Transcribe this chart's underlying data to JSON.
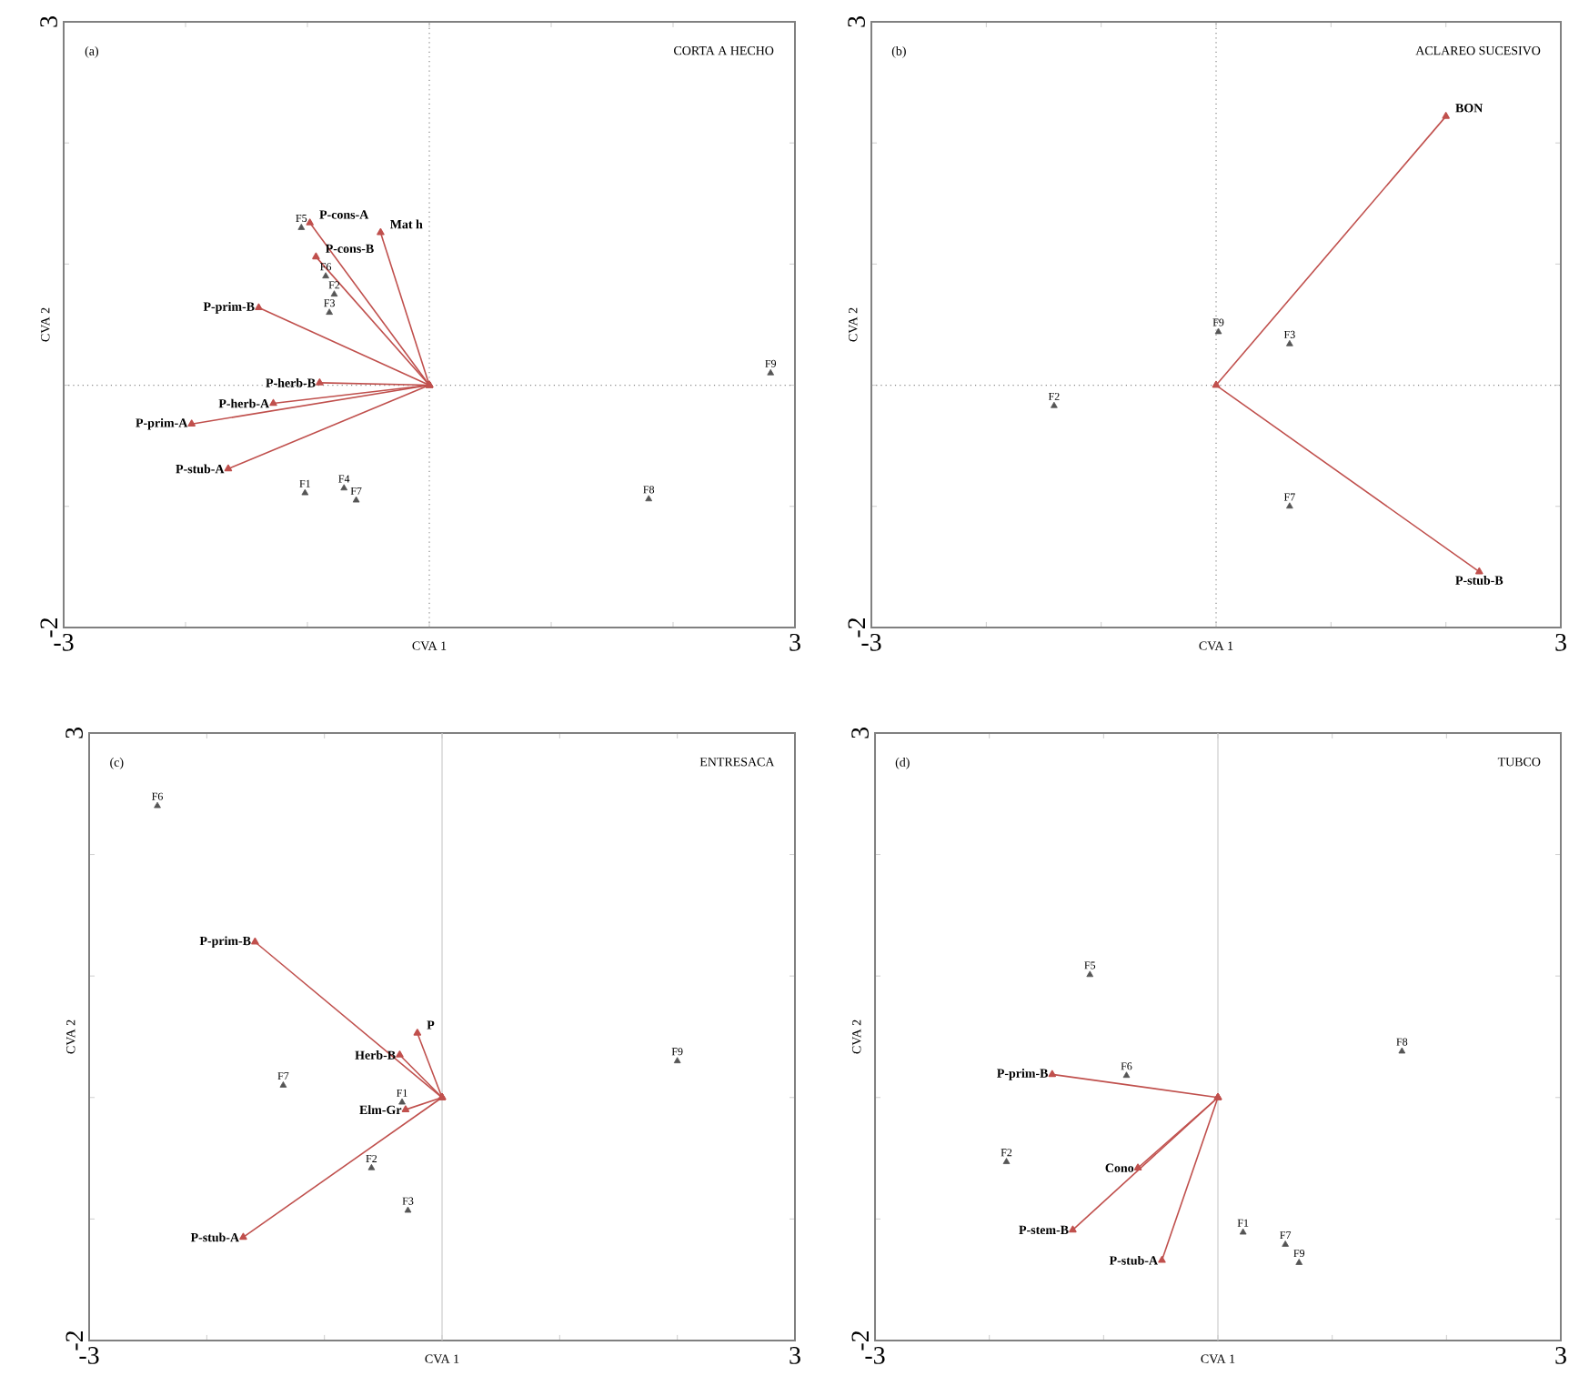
{
  "chart_data": [
    {
      "type": "scatter",
      "title": "CORTA A HECHO",
      "subtitle": "(a)",
      "xlabel": "CVA 1",
      "ylabel": "CVA 2",
      "xlim": [
        -3,
        3
      ],
      "ylim": [
        -2,
        3
      ],
      "marker": "triangle",
      "xticks": [
        -3,
        {
          "value": -2,
          "label": null
        },
        {
          "value": -1,
          "label": null
        },
        {
          "value": 0,
          "label": null
        },
        {
          "value": 1,
          "label": null
        },
        {
          "value": 2,
          "label": null
        },
        3
      ],
      "yticks": [
        -2,
        {
          "value": -1,
          "label": null
        },
        {
          "value": 0,
          "label": null
        },
        {
          "value": 1,
          "label": null
        },
        {
          "value": 2,
          "label": null
        },
        3
      ],
      "ref_lines": [
        {
          "axis": "x",
          "value": 0,
          "color": "#888888",
          "line_style": "dotted"
        },
        {
          "axis": "y",
          "value": 0,
          "color": "#888888",
          "line_style": "dotted"
        }
      ],
      "series": [
        {
          "color": "#555555",
          "x": [
            -1.05,
            -0.85,
            -0.78,
            -0.82,
            -1.02,
            -0.7,
            -0.6,
            1.8,
            2.8
          ],
          "values": [
            1.3,
            0.9,
            0.75,
            0.6,
            -0.89,
            -0.85,
            -0.95,
            -0.94,
            0.1
          ]
        },
        {
          "type": "line",
          "name": "P-cons-A",
          "color": "#c0504d",
          "x": [
            0,
            -0.98
          ],
          "values": [
            0,
            1.34
          ]
        },
        {
          "type": "line",
          "name": "Mat h",
          "color": "#c0504d",
          "x": [
            0,
            -0.4
          ],
          "values": [
            0,
            1.26
          ]
        },
        {
          "type": "line",
          "name": "P-cons-B",
          "color": "#c0504d",
          "x": [
            0,
            -0.93
          ],
          "values": [
            0,
            1.06
          ]
        },
        {
          "type": "line",
          "name": "P-prim-B",
          "color": "#c0504d",
          "x": [
            0,
            -1.4
          ],
          "values": [
            0,
            0.64
          ]
        },
        {
          "type": "line",
          "name": "P-herb-B",
          "color": "#c0504d",
          "x": [
            0,
            -0.9
          ],
          "values": [
            0,
            0.02
          ]
        },
        {
          "type": "line",
          "name": "P-herb-A",
          "color": "#c0504d",
          "x": [
            0,
            -1.28
          ],
          "values": [
            0,
            -0.15
          ]
        },
        {
          "type": "line",
          "name": "P-prim-A",
          "color": "#c0504d",
          "x": [
            0,
            -1.95
          ],
          "values": [
            0,
            -0.32
          ]
        },
        {
          "type": "line",
          "name": "P-stub-A",
          "color": "#c0504d",
          "x": [
            0,
            -1.65
          ],
          "values": [
            0,
            -0.69
          ]
        }
      ],
      "annotations": [
        {
          "text": "F5",
          "x": -1.05,
          "y": 1.3
        },
        {
          "text": "F6",
          "x": -0.85,
          "y": 0.9
        },
        {
          "text": "F2",
          "x": -0.78,
          "y": 0.75
        },
        {
          "text": "F3",
          "x": -0.82,
          "y": 0.6
        },
        {
          "text": "F1",
          "x": -1.02,
          "y": -0.89
        },
        {
          "text": "F4",
          "x": -0.7,
          "y": -0.85
        },
        {
          "text": "F7",
          "x": -0.6,
          "y": -0.95
        },
        {
          "text": "F8",
          "x": 1.8,
          "y": -0.94
        },
        {
          "text": "F9",
          "x": 2.8,
          "y": 0.1
        }
      ]
    },
    {
      "type": "scatter",
      "title": "ACLAREO SUCESIVO",
      "subtitle": "(b)",
      "xlabel": "CVA 1",
      "ylabel": "CVA 2",
      "xlim": [
        -3,
        3
      ],
      "ylim": [
        -2,
        3
      ],
      "marker": "triangle",
      "xticks": [
        -3,
        {
          "value": -2,
          "label": null
        },
        {
          "value": -1,
          "label": null
        },
        {
          "value": 0,
          "label": null
        },
        {
          "value": 1,
          "label": null
        },
        {
          "value": 2,
          "label": null
        },
        3
      ],
      "yticks": [
        -2,
        {
          "value": -1,
          "label": null
        },
        {
          "value": 0,
          "label": null
        },
        {
          "value": 1,
          "label": null
        },
        {
          "value": 2,
          "label": null
        },
        3
      ],
      "ref_lines": [
        {
          "axis": "x",
          "value": 0,
          "color": "#888888",
          "line_style": "dotted"
        },
        {
          "axis": "y",
          "value": 0,
          "color": "#888888",
          "line_style": "dotted"
        }
      ],
      "series": [
        {
          "color": "#555555",
          "x": [
            0.02,
            0.64,
            -1.41,
            0.64
          ],
          "values": [
            0.44,
            0.34,
            -0.17,
            -1.0
          ]
        },
        {
          "type": "line",
          "name": "BON",
          "color": "#c0504d",
          "x": [
            0,
            2.0
          ],
          "values": [
            0,
            2.22
          ]
        },
        {
          "type": "line",
          "name": "P-stub-B",
          "color": "#c0504d",
          "x": [
            0,
            2.29
          ],
          "values": [
            0,
            -1.54
          ]
        }
      ],
      "annotations": [
        {
          "text": "F9",
          "x": 0.02,
          "y": 0.44
        },
        {
          "text": "F3",
          "x": 0.64,
          "y": 0.34
        },
        {
          "text": "F2",
          "x": -1.41,
          "y": -0.17
        },
        {
          "text": "F7",
          "x": 0.64,
          "y": -1.0
        }
      ]
    },
    {
      "type": "scatter",
      "title": "ENTRESACA",
      "subtitle": "(c)",
      "xlabel": "CVA 1",
      "ylabel": "CVA 2",
      "xlim": [
        -3,
        3
      ],
      "ylim": [
        -2,
        3
      ],
      "marker": "triangle",
      "xticks": [
        -3,
        {
          "value": -2,
          "label": null
        },
        {
          "value": -1,
          "label": null
        },
        {
          "value": 0,
          "label": null
        },
        {
          "value": 1,
          "label": null
        },
        {
          "value": 2,
          "label": null
        },
        3
      ],
      "yticks": [
        -2,
        {
          "value": -1,
          "label": null
        },
        {
          "value": 0,
          "label": null
        },
        {
          "value": 1,
          "label": null
        },
        {
          "value": 2,
          "label": null
        },
        3
      ],
      "ref_lines": [
        {
          "axis": "x",
          "value": 0,
          "color": "#cccccc",
          "line_style": "solid"
        }
      ],
      "series": [
        {
          "color": "#555555",
          "x": [
            -2.42,
            -1.35,
            2.0,
            -0.34,
            -0.6,
            -0.29
          ],
          "values": [
            2.4,
            0.1,
            0.3,
            -0.04,
            -0.58,
            -0.93
          ]
        },
        {
          "type": "line",
          "name": "P-prim-B",
          "color": "#c0504d",
          "x": [
            0,
            -1.59
          ],
          "values": [
            0,
            1.28
          ]
        },
        {
          "type": "line",
          "name": "Herb-B",
          "color": "#c0504d",
          "x": [
            0,
            -0.36
          ],
          "values": [
            0,
            0.35
          ]
        },
        {
          "type": "line",
          "name": "P",
          "color": "#c0504d",
          "x": [
            0,
            -0.21
          ],
          "values": [
            0,
            0.53
          ]
        },
        {
          "type": "line",
          "name": "Elm-Gr",
          "color": "#c0504d",
          "x": [
            0,
            -0.31
          ],
          "values": [
            0,
            -0.1
          ]
        },
        {
          "type": "line",
          "name": "P-stub-A",
          "color": "#c0504d",
          "x": [
            0,
            -1.69
          ],
          "values": [
            0,
            -1.15
          ]
        }
      ],
      "annotations": [
        {
          "text": "F6",
          "x": -2.42,
          "y": 2.4
        },
        {
          "text": "F7",
          "x": -1.35,
          "y": 0.1
        },
        {
          "text": "F9",
          "x": 2.0,
          "y": 0.3
        },
        {
          "text": "F1",
          "x": -0.34,
          "y": -0.04
        },
        {
          "text": "F2",
          "x": -0.6,
          "y": -0.58
        },
        {
          "text": "F3",
          "x": -0.29,
          "y": -0.93
        }
      ]
    },
    {
      "type": "scatter",
      "title": "TUBCO",
      "subtitle": "(d)",
      "xlabel": "CVA 1",
      "ylabel": "CVA 2",
      "xlim": [
        -3,
        3
      ],
      "ylim": [
        -2,
        3
      ],
      "marker": "triangle",
      "xticks": [
        -3,
        {
          "value": -2,
          "label": null
        },
        {
          "value": -1,
          "label": null
        },
        {
          "value": 0,
          "label": null
        },
        {
          "value": 1,
          "label": null
        },
        {
          "value": 2,
          "label": null
        },
        3
      ],
      "yticks": [
        -2,
        {
          "value": -1,
          "label": null
        },
        {
          "value": 0,
          "label": null
        },
        {
          "value": 1,
          "label": null
        },
        {
          "value": 2,
          "label": null
        },
        3
      ],
      "ref_lines": [
        {
          "axis": "x",
          "value": 0,
          "color": "#cccccc",
          "line_style": "solid"
        }
      ],
      "series": [
        {
          "color": "#555555",
          "x": [
            -1.12,
            -0.8,
            -1.85,
            1.61,
            0.22,
            0.59,
            0.71
          ],
          "values": [
            1.01,
            0.18,
            -0.53,
            0.38,
            -1.11,
            -1.21,
            -1.36
          ]
        },
        {
          "type": "line",
          "name": "P-prim-B",
          "color": "#c0504d",
          "x": [
            0,
            -1.45
          ],
          "values": [
            0,
            0.19
          ]
        },
        {
          "type": "line",
          "name": "Cono",
          "color": "#c0504d",
          "x": [
            0,
            -0.7
          ],
          "values": [
            0,
            -0.58
          ]
        },
        {
          "type": "line",
          "name": "P-stem-B",
          "color": "#c0504d",
          "x": [
            0,
            -1.27
          ],
          "values": [
            0,
            -1.09
          ]
        },
        {
          "type": "line",
          "name": "P-stub-A",
          "color": "#c0504d",
          "x": [
            0,
            -0.49
          ],
          "values": [
            0,
            -1.34
          ]
        }
      ],
      "annotations": [
        {
          "text": "F5",
          "x": -1.12,
          "y": 1.01
        },
        {
          "text": "F6",
          "x": -0.8,
          "y": 0.18
        },
        {
          "text": "F2",
          "x": -1.85,
          "y": -0.53
        },
        {
          "text": "F8",
          "x": 1.61,
          "y": 0.38
        },
        {
          "text": "F1",
          "x": 0.22,
          "y": -1.11
        },
        {
          "text": "F7",
          "x": 0.59,
          "y": -1.21
        },
        {
          "text": "F9",
          "x": 0.71,
          "y": -1.36
        }
      ]
    }
  ]
}
